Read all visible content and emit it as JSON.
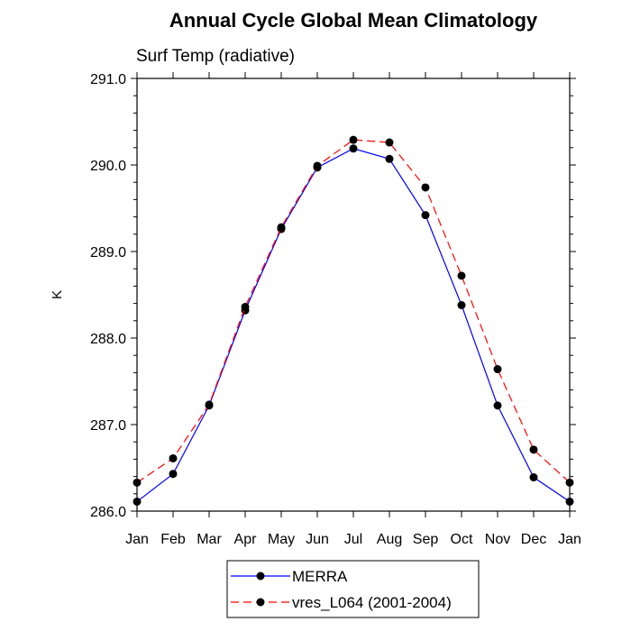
{
  "chart_data": {
    "type": "line",
    "title": "Annual Cycle Global Mean Climatology",
    "subtitle": "Surf Temp (radiative)",
    "xlabel": "",
    "ylabel": "K",
    "ylim": [
      286.0,
      291.0
    ],
    "yticks": [
      "286.0",
      "287.0",
      "288.0",
      "289.0",
      "290.0",
      "291.0"
    ],
    "categories": [
      "Jan",
      "Feb",
      "Mar",
      "Apr",
      "May",
      "Jun",
      "Jul",
      "Aug",
      "Sep",
      "Oct",
      "Nov",
      "Dec",
      "Jan"
    ],
    "grid": false,
    "legend_position": "bottom-center",
    "series": [
      {
        "name": "MERRA",
        "color": "#0000ff",
        "line_style": "solid",
        "marker": "filled-circle",
        "values": [
          286.11,
          286.43,
          287.22,
          288.32,
          289.26,
          289.97,
          290.19,
          290.07,
          289.42,
          288.38,
          287.22,
          286.39,
          286.11
        ]
      },
      {
        "name": "vres_L064 (2001-2004)",
        "color": "#ff0000",
        "line_style": "dashed",
        "marker": "filled-circle",
        "values": [
          286.33,
          286.61,
          287.23,
          288.36,
          289.28,
          289.99,
          290.29,
          290.26,
          289.74,
          288.72,
          287.64,
          286.71,
          286.33
        ]
      }
    ]
  }
}
